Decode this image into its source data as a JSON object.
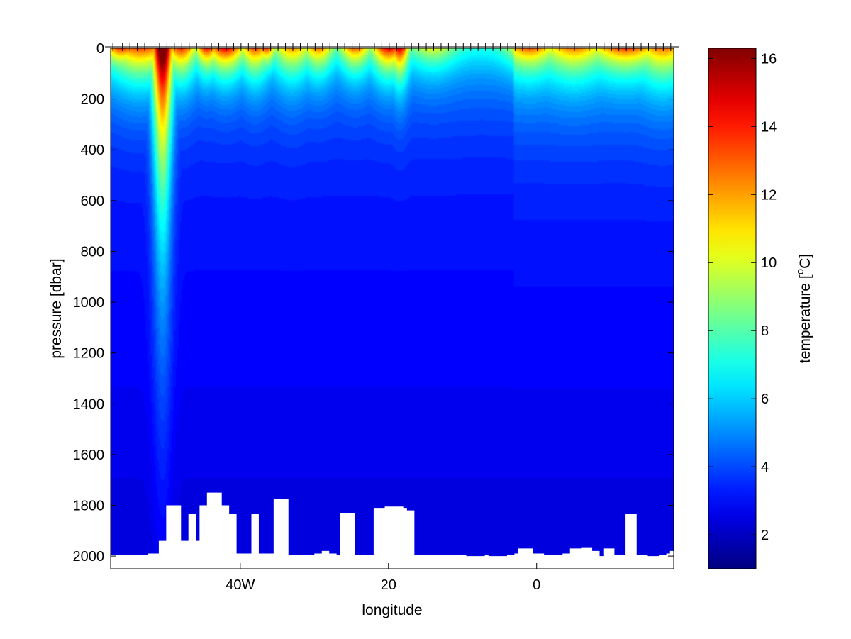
{
  "chart_data": {
    "type": "heatmap",
    "subtype": "filled-contour section",
    "title": "",
    "xlabel": "longitude",
    "ylabel": "pressure [dbar]",
    "colorbar_label_prefix": "temperature [",
    "colorbar_label_unit_sup": "o",
    "colorbar_label_unit": "C]",
    "colormap": "jet",
    "x_range": [
      -57.5,
      18.5
    ],
    "y_range": [
      0,
      2050
    ],
    "y_reversed": true,
    "c_range": [
      1.0,
      16.3
    ],
    "x_ticks": [
      {
        "value": -40,
        "label": "40W"
      },
      {
        "value": -20,
        "label": "20"
      },
      {
        "value": 0,
        "label": "0"
      }
    ],
    "y_ticks": [
      {
        "value": 0,
        "label": "0"
      },
      {
        "value": 200,
        "label": "200"
      },
      {
        "value": 400,
        "label": "400"
      },
      {
        "value": 600,
        "label": "600"
      },
      {
        "value": 800,
        "label": "800"
      },
      {
        "value": 1000,
        "label": "1000"
      },
      {
        "value": 1200,
        "label": "1200"
      },
      {
        "value": 1400,
        "label": "1400"
      },
      {
        "value": 1600,
        "label": "1600"
      },
      {
        "value": 1800,
        "label": "1800"
      },
      {
        "value": 2000,
        "label": "2000"
      }
    ],
    "c_ticks": [
      {
        "value": 2,
        "label": "2"
      },
      {
        "value": 4,
        "label": "4"
      },
      {
        "value": 6,
        "label": "6"
      },
      {
        "value": 8,
        "label": "8"
      },
      {
        "value": 10,
        "label": "10"
      },
      {
        "value": 12,
        "label": "12"
      },
      {
        "value": 14,
        "label": "14"
      },
      {
        "value": 16,
        "label": "16"
      }
    ],
    "stations_lon": [
      -57.2,
      -55.9,
      -54.9,
      -53.9,
      -52.9,
      -51.9,
      -50.9,
      -49.9,
      -48.9,
      -47.9,
      -46.9,
      -45.9,
      -44.9,
      -43.9,
      -42.9,
      -41.9,
      -40.9,
      -39.9,
      -38.9,
      -37.9,
      -36.9,
      -35.9,
      -34.9,
      -33.9,
      -32.9,
      -31.9,
      -30.9,
      -29.9,
      -28.9,
      -27.9,
      -26.9,
      -25.9,
      -24.9,
      -23.9,
      -22.9,
      -21.9,
      -20.9,
      -19.9,
      -18.9,
      -17.9,
      -16.9,
      -15.9,
      -14.9,
      -13.9,
      -12.9,
      -11.9,
      -10.9,
      -9.9,
      -8.9,
      -7.9,
      -6.9,
      -5.9,
      -4.9,
      -3.9,
      -2.9,
      -1.9,
      -0.9,
      0.1,
      1.1,
      2.1,
      3.1,
      4.1,
      5.1,
      6.1,
      7.1,
      8.1,
      9.1,
      10.1,
      11.1,
      12.1,
      13.1,
      14.1,
      15.1,
      16.1,
      17.1,
      18.1
    ],
    "profile_bottom_dbar": [
      [
        -57.5,
        1995
      ],
      [
        -55.5,
        1995
      ],
      [
        -53.0,
        1995
      ],
      [
        -52.5,
        1990
      ],
      [
        -51.5,
        1990
      ],
      [
        -51.0,
        1940
      ],
      [
        -50.0,
        1800
      ],
      [
        -48.5,
        1800
      ],
      [
        -48.0,
        1940
      ],
      [
        -47.0,
        1835
      ],
      [
        -46.0,
        1940
      ],
      [
        -45.5,
        1800
      ],
      [
        -44.5,
        1750
      ],
      [
        -43.5,
        1750
      ],
      [
        -42.5,
        1800
      ],
      [
        -41.5,
        1835
      ],
      [
        -40.5,
        1990
      ],
      [
        -39.5,
        1990
      ],
      [
        -38.5,
        1835
      ],
      [
        -37.5,
        1990
      ],
      [
        -36.5,
        1990
      ],
      [
        -35.5,
        1775
      ],
      [
        -34.5,
        1775
      ],
      [
        -33.5,
        1995
      ],
      [
        -31.5,
        1995
      ],
      [
        -30.0,
        1990
      ],
      [
        -29.0,
        1980
      ],
      [
        -28.0,
        1990
      ],
      [
        -27.0,
        1995
      ],
      [
        -26.5,
        1830
      ],
      [
        -25.5,
        1830
      ],
      [
        -24.5,
        1995
      ],
      [
        -22.5,
        1995
      ],
      [
        -22.0,
        1810
      ],
      [
        -21.0,
        1810
      ],
      [
        -20.5,
        1805
      ],
      [
        -18.0,
        1810
      ],
      [
        -17.5,
        1820
      ],
      [
        -16.5,
        1995
      ],
      [
        -10.0,
        1995
      ],
      [
        -9.5,
        2000
      ],
      [
        -7.0,
        1995
      ],
      [
        -6.5,
        2000
      ],
      [
        -4.0,
        1995
      ],
      [
        -3.0,
        1990
      ],
      [
        -2.5,
        1970
      ],
      [
        -1.5,
        1970
      ],
      [
        -0.5,
        1990
      ],
      [
        1.0,
        1995
      ],
      [
        2.5,
        1995
      ],
      [
        3.5,
        1990
      ],
      [
        4.5,
        1970
      ],
      [
        6.0,
        1965
      ],
      [
        7.5,
        1980
      ],
      [
        8.5,
        2000
      ],
      [
        9.0,
        1970
      ],
      [
        10.0,
        1970
      ],
      [
        10.5,
        1995
      ],
      [
        11.5,
        1995
      ],
      [
        12.0,
        1835
      ],
      [
        13.0,
        1835
      ],
      [
        13.5,
        1995
      ],
      [
        15.0,
        2000
      ],
      [
        16.5,
        1995
      ],
      [
        17.5,
        1990
      ],
      [
        18.0,
        1980
      ],
      [
        18.5,
        1975
      ]
    ],
    "surface_temperature_features": [
      {
        "lon": -56.0,
        "width": 2.4,
        "max_temp": 11.0,
        "depth_dbar": 70
      },
      {
        "lon": -53.5,
        "width": 4.5,
        "max_temp": 10.5,
        "depth_dbar": 120
      },
      {
        "lon": -50.5,
        "width": 1.3,
        "max_temp": 16.3,
        "depth_dbar": 620
      },
      {
        "lon": -48.0,
        "width": 2.0,
        "max_temp": 11.0,
        "depth_dbar": 110
      },
      {
        "lon": -44.5,
        "width": 1.5,
        "max_temp": 11.5,
        "depth_dbar": 80
      },
      {
        "lon": -42.0,
        "width": 2.5,
        "max_temp": 12.0,
        "depth_dbar": 90
      },
      {
        "lon": -38.0,
        "width": 2.0,
        "max_temp": 10.5,
        "depth_dbar": 100
      },
      {
        "lon": -36.5,
        "width": 1.2,
        "max_temp": 11.0,
        "depth_dbar": 60
      },
      {
        "lon": -33.0,
        "width": 2.5,
        "max_temp": 9.0,
        "depth_dbar": 110
      },
      {
        "lon": -29.5,
        "width": 2.0,
        "max_temp": 9.5,
        "depth_dbar": 90
      },
      {
        "lon": -24.5,
        "width": 2.0,
        "max_temp": 10.0,
        "depth_dbar": 80
      },
      {
        "lon": -20.0,
        "width": 2.2,
        "max_temp": 12.0,
        "depth_dbar": 90
      },
      {
        "lon": -18.5,
        "width": 1.2,
        "max_temp": 12.5,
        "depth_dbar": 110
      },
      {
        "lon": -14.0,
        "width": 3.0,
        "max_temp": 6.8,
        "depth_dbar": 80
      },
      {
        "lon": -1.0,
        "width": 3.0,
        "max_temp": 8.5,
        "depth_dbar": 70
      },
      {
        "lon": 5.0,
        "width": 3.5,
        "max_temp": 7.8,
        "depth_dbar": 90
      },
      {
        "lon": 12.0,
        "width": 4.0,
        "max_temp": 9.0,
        "depth_dbar": 70
      },
      {
        "lon": 17.0,
        "width": 3.0,
        "max_temp": 8.0,
        "depth_dbar": 110
      }
    ]
  }
}
